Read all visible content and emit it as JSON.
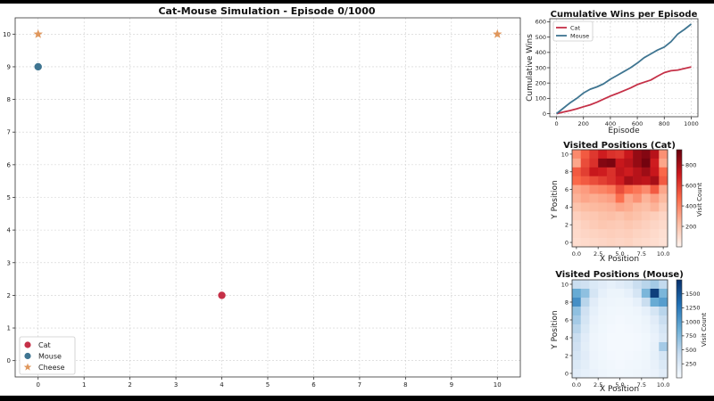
{
  "chart_data": [
    {
      "type": "scatter",
      "title": "Cat-Mouse Simulation - Episode 0/1000",
      "xlim": [
        -0.5,
        10.5
      ],
      "ylim": [
        -0.5,
        10.5
      ],
      "x_ticks": [
        "0",
        "1",
        "2",
        "3",
        "4",
        "5",
        "6",
        "7",
        "8",
        "9",
        "10"
      ],
      "y_ticks": [
        "0",
        "1",
        "2",
        "3",
        "4",
        "5",
        "6",
        "7",
        "8",
        "9",
        "10"
      ],
      "grid": true,
      "legend_position": "bottom-left",
      "series": [
        {
          "name": "Cat",
          "marker": "circle",
          "color": "#c53047",
          "points": [
            [
              4,
              2
            ]
          ]
        },
        {
          "name": "Mouse",
          "marker": "circle",
          "color": "#3f7591",
          "points": [
            [
              0,
              9
            ]
          ]
        },
        {
          "name": "Cheese",
          "marker": "star",
          "color": "#e0975c",
          "points": [
            [
              0,
              10
            ],
            [
              10,
              10
            ]
          ]
        }
      ]
    },
    {
      "type": "line",
      "title": "Cumulative Wins per Episode",
      "xlabel": "Episode",
      "ylabel": "Cumulative Wins",
      "xlim": [
        -50,
        1050
      ],
      "ylim": [
        -20,
        620
      ],
      "x_ticks": [
        "0",
        "200",
        "400",
        "600",
        "800",
        "1000"
      ],
      "y_ticks": [
        "0",
        "100",
        "200",
        "300",
        "400",
        "500",
        "600"
      ],
      "grid": true,
      "legend_position": "top-left",
      "x": [
        0,
        50,
        100,
        150,
        200,
        250,
        300,
        350,
        400,
        450,
        500,
        550,
        600,
        650,
        700,
        750,
        800,
        850,
        900,
        950,
        1000
      ],
      "series": [
        {
          "name": "Cat",
          "color": "#c53047",
          "values": [
            0,
            10,
            20,
            32,
            45,
            58,
            75,
            95,
            115,
            132,
            150,
            168,
            190,
            205,
            220,
            245,
            268,
            280,
            285,
            295,
            305
          ]
        },
        {
          "name": "Mouse",
          "color": "#3f7591",
          "values": [
            0,
            35,
            70,
            100,
            135,
            160,
            175,
            195,
            225,
            250,
            275,
            300,
            330,
            365,
            390,
            415,
            435,
            470,
            520,
            550,
            585
          ]
        }
      ]
    },
    {
      "type": "heatmap",
      "title": "Visited Positions (Cat)",
      "xlabel": "X Position",
      "ylabel": "Y Position",
      "colorbar_label": "Visit Count",
      "colormap": "Reds",
      "vmin": 0,
      "vmax": 950,
      "x_ticks": [
        "0.0",
        "2.5",
        "5.0",
        "7.5",
        "10.0"
      ],
      "y_ticks": [
        "0",
        "2",
        "4",
        "6",
        "8",
        "10"
      ],
      "colorbar_ticks": [
        "200",
        "400",
        "600",
        "800"
      ],
      "rows_top_to_bottom": [
        [
          380,
          520,
          620,
          700,
          640,
          620,
          720,
          840,
          880,
          760,
          360
        ],
        [
          300,
          560,
          640,
          880,
          900,
          720,
          760,
          840,
          920,
          700,
          300
        ],
        [
          520,
          600,
          720,
          700,
          640,
          740,
          700,
          760,
          820,
          720,
          480
        ],
        [
          480,
          520,
          560,
          600,
          640,
          700,
          800,
          760,
          740,
          800,
          520
        ],
        [
          300,
          330,
          380,
          400,
          430,
          560,
          480,
          440,
          380,
          520,
          300
        ],
        [
          260,
          300,
          280,
          300,
          320,
          460,
          300,
          360,
          260,
          320,
          240
        ],
        [
          200,
          230,
          240,
          250,
          260,
          300,
          280,
          240,
          220,
          260,
          180
        ],
        [
          150,
          180,
          190,
          210,
          220,
          200,
          230,
          210,
          180,
          160,
          130
        ],
        [
          120,
          150,
          170,
          190,
          180,
          170,
          190,
          170,
          150,
          130,
          110
        ],
        [
          110,
          130,
          140,
          150,
          160,
          150,
          160,
          140,
          130,
          110,
          90
        ],
        [
          100,
          110,
          120,
          130,
          140,
          130,
          140,
          120,
          110,
          100,
          80
        ]
      ]
    },
    {
      "type": "heatmap",
      "title": "Visited Positions (Mouse)",
      "xlabel": "X Position",
      "ylabel": "Y Position",
      "colorbar_label": "Visit Count",
      "colormap": "Blues",
      "vmin": 0,
      "vmax": 1750,
      "x_ticks": [
        "0.0",
        "2.5",
        "5.0",
        "7.5",
        "10.0"
      ],
      "y_ticks": [
        "0",
        "2",
        "4",
        "6",
        "8",
        "10"
      ],
      "colorbar_ticks": [
        "250",
        "500",
        "750",
        "1000",
        "1250",
        "1500"
      ],
      "rows_top_to_bottom": [
        [
          400,
          350,
          250,
          200,
          150,
          200,
          250,
          400,
          500,
          600,
          450
        ],
        [
          900,
          700,
          300,
          150,
          100,
          100,
          150,
          300,
          800,
          1650,
          800
        ],
        [
          1100,
          500,
          200,
          100,
          80,
          70,
          80,
          150,
          400,
          900,
          1000
        ],
        [
          700,
          350,
          150,
          80,
          60,
          50,
          60,
          80,
          150,
          300,
          500
        ],
        [
          600,
          300,
          120,
          70,
          50,
          40,
          50,
          60,
          100,
          200,
          400
        ],
        [
          500,
          250,
          100,
          60,
          40,
          30,
          40,
          50,
          80,
          150,
          300
        ],
        [
          400,
          200,
          80,
          50,
          30,
          30,
          30,
          40,
          60,
          120,
          250
        ],
        [
          350,
          180,
          80,
          50,
          30,
          30,
          30,
          40,
          60,
          130,
          600
        ],
        [
          300,
          200,
          90,
          60,
          40,
          30,
          40,
          50,
          70,
          150,
          300
        ],
        [
          250,
          180,
          100,
          70,
          50,
          40,
          50,
          60,
          80,
          130,
          250
        ],
        [
          200,
          150,
          120,
          80,
          60,
          50,
          60,
          70,
          90,
          120,
          200
        ]
      ]
    }
  ]
}
